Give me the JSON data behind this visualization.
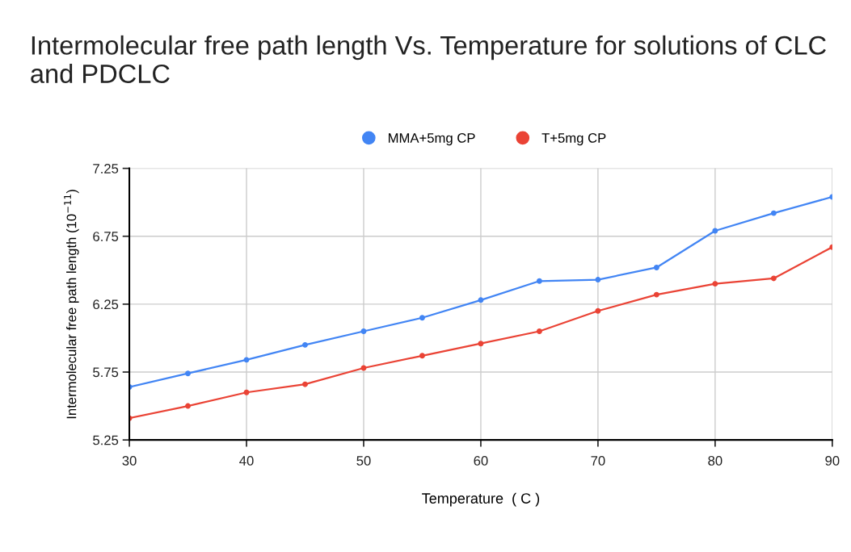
{
  "chart_data": {
    "type": "line",
    "title": "Intermolecular free path length Vs. Temperature for solutions of CLC and PDCLC",
    "xlabel": "Temperature  ( C )",
    "ylabel": "Intermolecular free path length (10$^{−11}$)",
    "x": [
      30,
      35,
      40,
      45,
      50,
      55,
      60,
      65,
      70,
      75,
      80,
      85,
      90
    ],
    "series": [
      {
        "name": "MMA+5mg CP",
        "color": "#4285f4",
        "values": [
          5.64,
          5.74,
          5.84,
          5.95,
          6.05,
          6.15,
          6.28,
          6.42,
          6.43,
          6.52,
          6.79,
          6.92,
          7.04
        ]
      },
      {
        "name": "T+5mg CP",
        "color": "#ea4335",
        "values": [
          5.41,
          5.5,
          5.6,
          5.66,
          5.78,
          5.87,
          5.96,
          6.05,
          6.2,
          6.32,
          6.4,
          6.44,
          6.67
        ]
      }
    ],
    "xlim": [
      30,
      90
    ],
    "xticks": [
      30,
      40,
      50,
      60,
      70,
      80,
      90
    ],
    "ylim": [
      5.25,
      7.25
    ],
    "yticks": [
      5.25,
      5.75,
      6.25,
      6.75,
      7.25
    ],
    "grid": true,
    "legend": "top",
    "marker": "circle",
    "line_style": "solid"
  }
}
